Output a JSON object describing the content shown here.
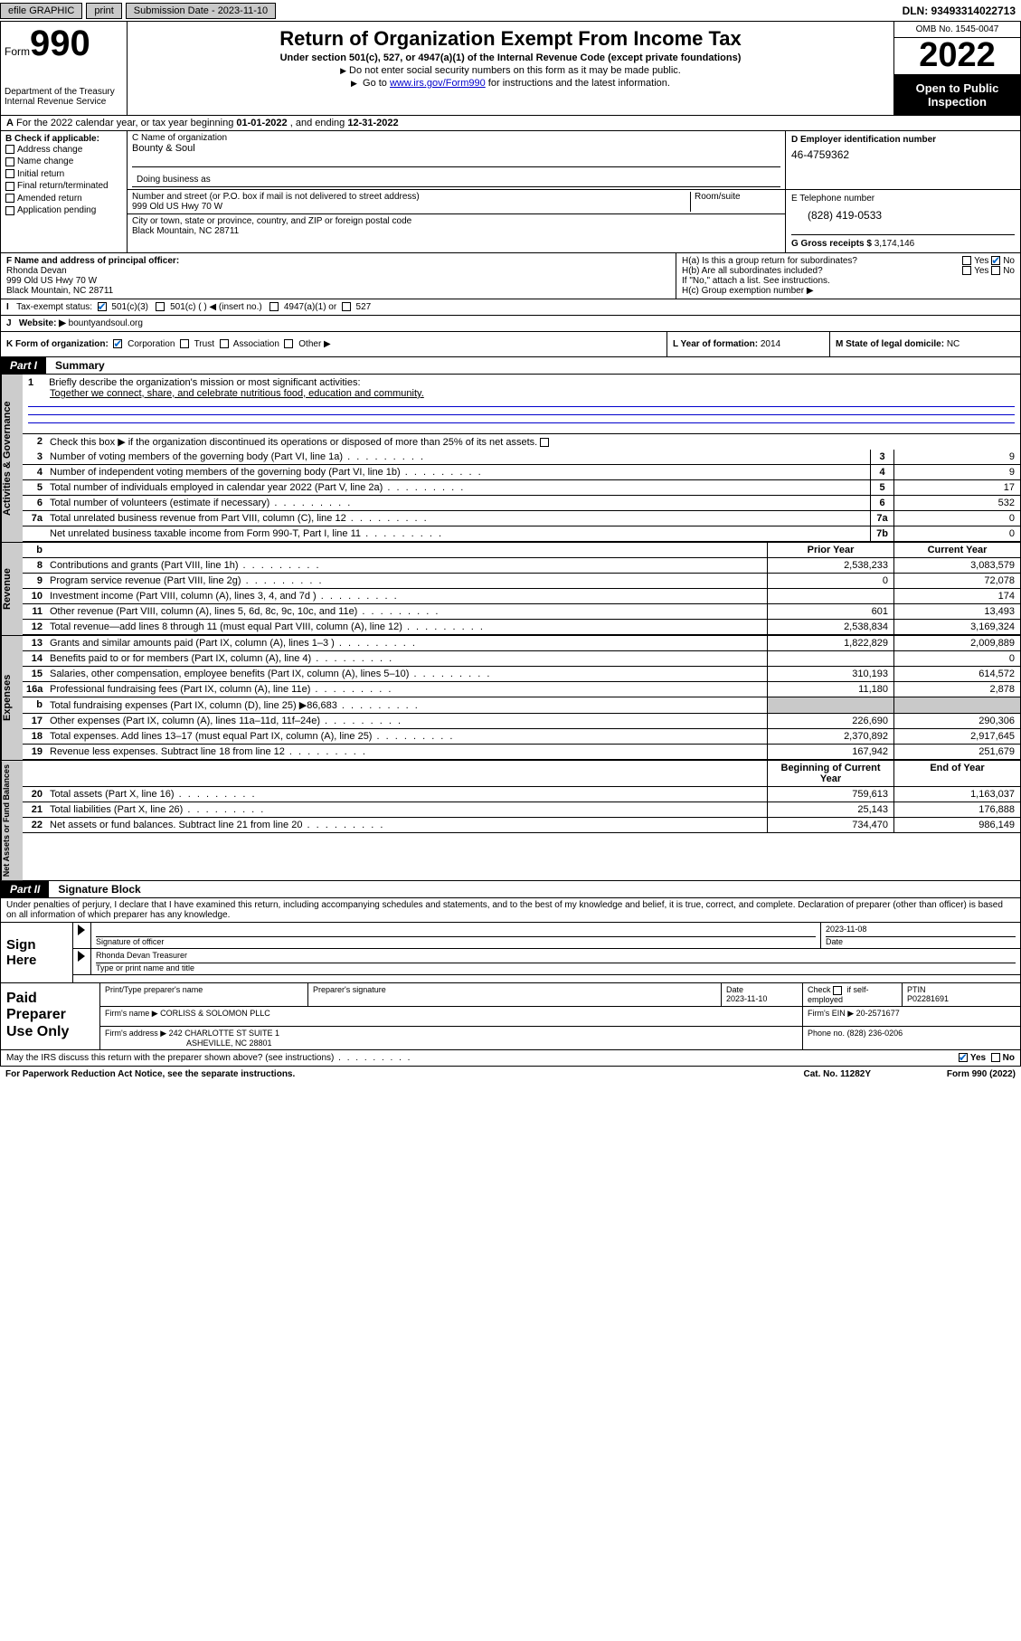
{
  "top": {
    "efile": "efile GRAPHIC",
    "print": "print",
    "sub_label": "Submission Date - 2023-11-10",
    "dln": "DLN: 93493314022713"
  },
  "header": {
    "form_word": "Form",
    "form_num": "990",
    "title": "Return of Organization Exempt From Income Tax",
    "sub1": "Under section 501(c), 527, or 4947(a)(1) of the Internal Revenue Code (except private foundations)",
    "sub2": "Do not enter social security numbers on this form as it may be made public.",
    "sub3_pre": "Go to ",
    "sub3_link": "www.irs.gov/Form990",
    "sub3_post": " for instructions and the latest information.",
    "omb": "OMB No. 1545-0047",
    "year": "2022",
    "open": "Open to Public Inspection",
    "dept": "Department of the Treasury",
    "irs": "Internal Revenue Service"
  },
  "row_a": {
    "text_pre": "For the 2022 calendar year, or tax year beginning ",
    "begin": "01-01-2022",
    "mid": " , and ending ",
    "end": "12-31-2022"
  },
  "col_b": {
    "label": "B Check if applicable:",
    "addr_change": "Address change",
    "name_change": "Name change",
    "initial": "Initial return",
    "final": "Final return/terminated",
    "amended": "Amended return",
    "app_pending": "Application pending"
  },
  "col_c": {
    "name_label": "C Name of organization",
    "name_val": "Bounty & Soul",
    "dba_label": "Doing business as",
    "street_label": "Number and street (or P.O. box if mail is not delivered to street address)",
    "room_label": "Room/suite",
    "street_val": "999 Old US Hwy 70 W",
    "city_label": "City or town, state or province, country, and ZIP or foreign postal code",
    "city_val": "Black Mountain, NC  28711"
  },
  "col_d": {
    "label": "D Employer identification number",
    "val": "46-4759362"
  },
  "col_e": {
    "label": "E Telephone number",
    "val": "(828) 419-0533",
    "gross_label": "G Gross receipts $ ",
    "gross_val": "3,174,146"
  },
  "col_f": {
    "label": "F Name and address of principal officer:",
    "name": "Rhonda Devan",
    "addr1": "999 Old US Hwy 70 W",
    "addr2": "Black Mountain, NC  28711"
  },
  "col_h": {
    "ha": "H(a)  Is this a group return for subordinates?",
    "hb": "H(b)  Are all subordinates included?",
    "hb_note": "If \"No,\" attach a list. See instructions.",
    "hc": "H(c)  Group exemption number ▶",
    "yes": "Yes",
    "no": "No"
  },
  "row_i": {
    "label": "Tax-exempt status:",
    "c3": "501(c)(3)",
    "c_other": "501(c) (   ) ◀ (insert no.)",
    "a1": "4947(a)(1) or",
    "s527": "527"
  },
  "row_j": {
    "label": "Website: ▶",
    "val": "bountyandsoul.org"
  },
  "row_k": {
    "label": "K Form of organization:",
    "corp": "Corporation",
    "trust": "Trust",
    "assoc": "Association",
    "other": "Other ▶",
    "l_label": "L Year of formation: ",
    "l_val": "2014",
    "m_label": "M State of legal domicile: ",
    "m_val": "NC"
  },
  "part1": {
    "label": "Part I",
    "title": "Summary"
  },
  "side": {
    "gov": "Activities & Governance",
    "rev": "Revenue",
    "exp": "Expenses",
    "net": "Net Assets or Fund Balances"
  },
  "mission": {
    "n": "1",
    "label": "Briefly describe the organization's mission or most significant activities:",
    "text": "Together we connect, share, and celebrate nutritious food, education and community."
  },
  "line2": {
    "n": "2",
    "text": "Check this box ▶         if the organization discontinued its operations or disposed of more than 25% of its net assets."
  },
  "gov_rows": [
    {
      "n": "3",
      "t": "Number of voting members of the governing body (Part VI, line 1a)",
      "nb": "3",
      "v": "9"
    },
    {
      "n": "4",
      "t": "Number of independent voting members of the governing body (Part VI, line 1b)",
      "nb": "4",
      "v": "9"
    },
    {
      "n": "5",
      "t": "Total number of individuals employed in calendar year 2022 (Part V, line 2a)",
      "nb": "5",
      "v": "17"
    },
    {
      "n": "6",
      "t": "Total number of volunteers (estimate if necessary)",
      "nb": "6",
      "v": "532"
    },
    {
      "n": "7a",
      "t": "Total unrelated business revenue from Part VIII, column (C), line 12",
      "nb": "7a",
      "v": "0"
    },
    {
      "n": "",
      "t": "Net unrelated business taxable income from Form 990-T, Part I, line 11",
      "nb": "7b",
      "v": "0"
    }
  ],
  "col_headers": {
    "b": "b",
    "prior": "Prior Year",
    "curr": "Current Year"
  },
  "rev_rows": [
    {
      "n": "8",
      "t": "Contributions and grants (Part VIII, line 1h)",
      "p": "2,538,233",
      "c": "3,083,579"
    },
    {
      "n": "9",
      "t": "Program service revenue (Part VIII, line 2g)",
      "p": "0",
      "c": "72,078"
    },
    {
      "n": "10",
      "t": "Investment income (Part VIII, column (A), lines 3, 4, and 7d )",
      "p": "",
      "c": "174"
    },
    {
      "n": "11",
      "t": "Other revenue (Part VIII, column (A), lines 5, 6d, 8c, 9c, 10c, and 11e)",
      "p": "601",
      "c": "13,493"
    },
    {
      "n": "12",
      "t": "Total revenue—add lines 8 through 11 (must equal Part VIII, column (A), line 12)",
      "p": "2,538,834",
      "c": "3,169,324"
    }
  ],
  "exp_rows": [
    {
      "n": "13",
      "t": "Grants and similar amounts paid (Part IX, column (A), lines 1–3 )",
      "p": "1,822,829",
      "c": "2,009,889"
    },
    {
      "n": "14",
      "t": "Benefits paid to or for members (Part IX, column (A), line 4)",
      "p": "",
      "c": "0"
    },
    {
      "n": "15",
      "t": "Salaries, other compensation, employee benefits (Part IX, column (A), lines 5–10)",
      "p": "310,193",
      "c": "614,572"
    },
    {
      "n": "16a",
      "t": "Professional fundraising fees (Part IX, column (A), line 11e)",
      "p": "11,180",
      "c": "2,878"
    },
    {
      "n": "b",
      "t": "Total fundraising expenses (Part IX, column (D), line 25) ▶86,683",
      "p": "",
      "c": "",
      "shade": true
    },
    {
      "n": "17",
      "t": "Other expenses (Part IX, column (A), lines 11a–11d, 11f–24e)",
      "p": "226,690",
      "c": "290,306"
    },
    {
      "n": "18",
      "t": "Total expenses. Add lines 13–17 (must equal Part IX, column (A), line 25)",
      "p": "2,370,892",
      "c": "2,917,645"
    },
    {
      "n": "19",
      "t": "Revenue less expenses. Subtract line 18 from line 12",
      "p": "167,942",
      "c": "251,679"
    }
  ],
  "net_headers": {
    "beg": "Beginning of Current Year",
    "end": "End of Year"
  },
  "net_rows": [
    {
      "n": "20",
      "t": "Total assets (Part X, line 16)",
      "p": "759,613",
      "c": "1,163,037"
    },
    {
      "n": "21",
      "t": "Total liabilities (Part X, line 26)",
      "p": "25,143",
      "c": "176,888"
    },
    {
      "n": "22",
      "t": "Net assets or fund balances. Subtract line 21 from line 20",
      "p": "734,470",
      "c": "986,149"
    }
  ],
  "part2": {
    "label": "Part II",
    "title": "Signature Block"
  },
  "sig": {
    "decl": "Under penalties of perjury, I declare that I have examined this return, including accompanying schedules and statements, and to the best of my knowledge and belief, it is true, correct, and complete. Declaration of preparer (other than officer) is based on all information of which preparer has any knowledge.",
    "sign_here": "Sign Here",
    "sig_label": "Signature of officer",
    "date_label": "Date",
    "date_val": "2023-11-08",
    "name_title": "Rhonda Devan  Treasurer",
    "type_label": "Type or print name and title"
  },
  "paid": {
    "label": "Paid Preparer Use Only",
    "h1": "Print/Type preparer's name",
    "h2": "Preparer's signature",
    "h3": "Date",
    "h3v": "2023-11-10",
    "h4a": "Check",
    "h4b": "if self-employed",
    "h5": "PTIN",
    "h5v": "P02281691",
    "firm_name_l": "Firm's name    ▶",
    "firm_name_v": "CORLISS & SOLOMON PLLC",
    "firm_ein_l": "Firm's EIN ▶",
    "firm_ein_v": "20-2571677",
    "firm_addr_l": "Firm's address ▶",
    "firm_addr_v1": "242 CHARLOTTE ST SUITE 1",
    "firm_addr_v2": "ASHEVILLE, NC  28801",
    "phone_l": "Phone no.",
    "phone_v": "(828) 236-0206"
  },
  "footer": {
    "discuss": "May the IRS discuss this return with the preparer shown above? (see instructions)",
    "yes": "Yes",
    "no": "No",
    "paperwork": "For Paperwork Reduction Act Notice, see the separate instructions.",
    "cat": "Cat. No. 11282Y",
    "form": "Form 990 (2022)"
  }
}
